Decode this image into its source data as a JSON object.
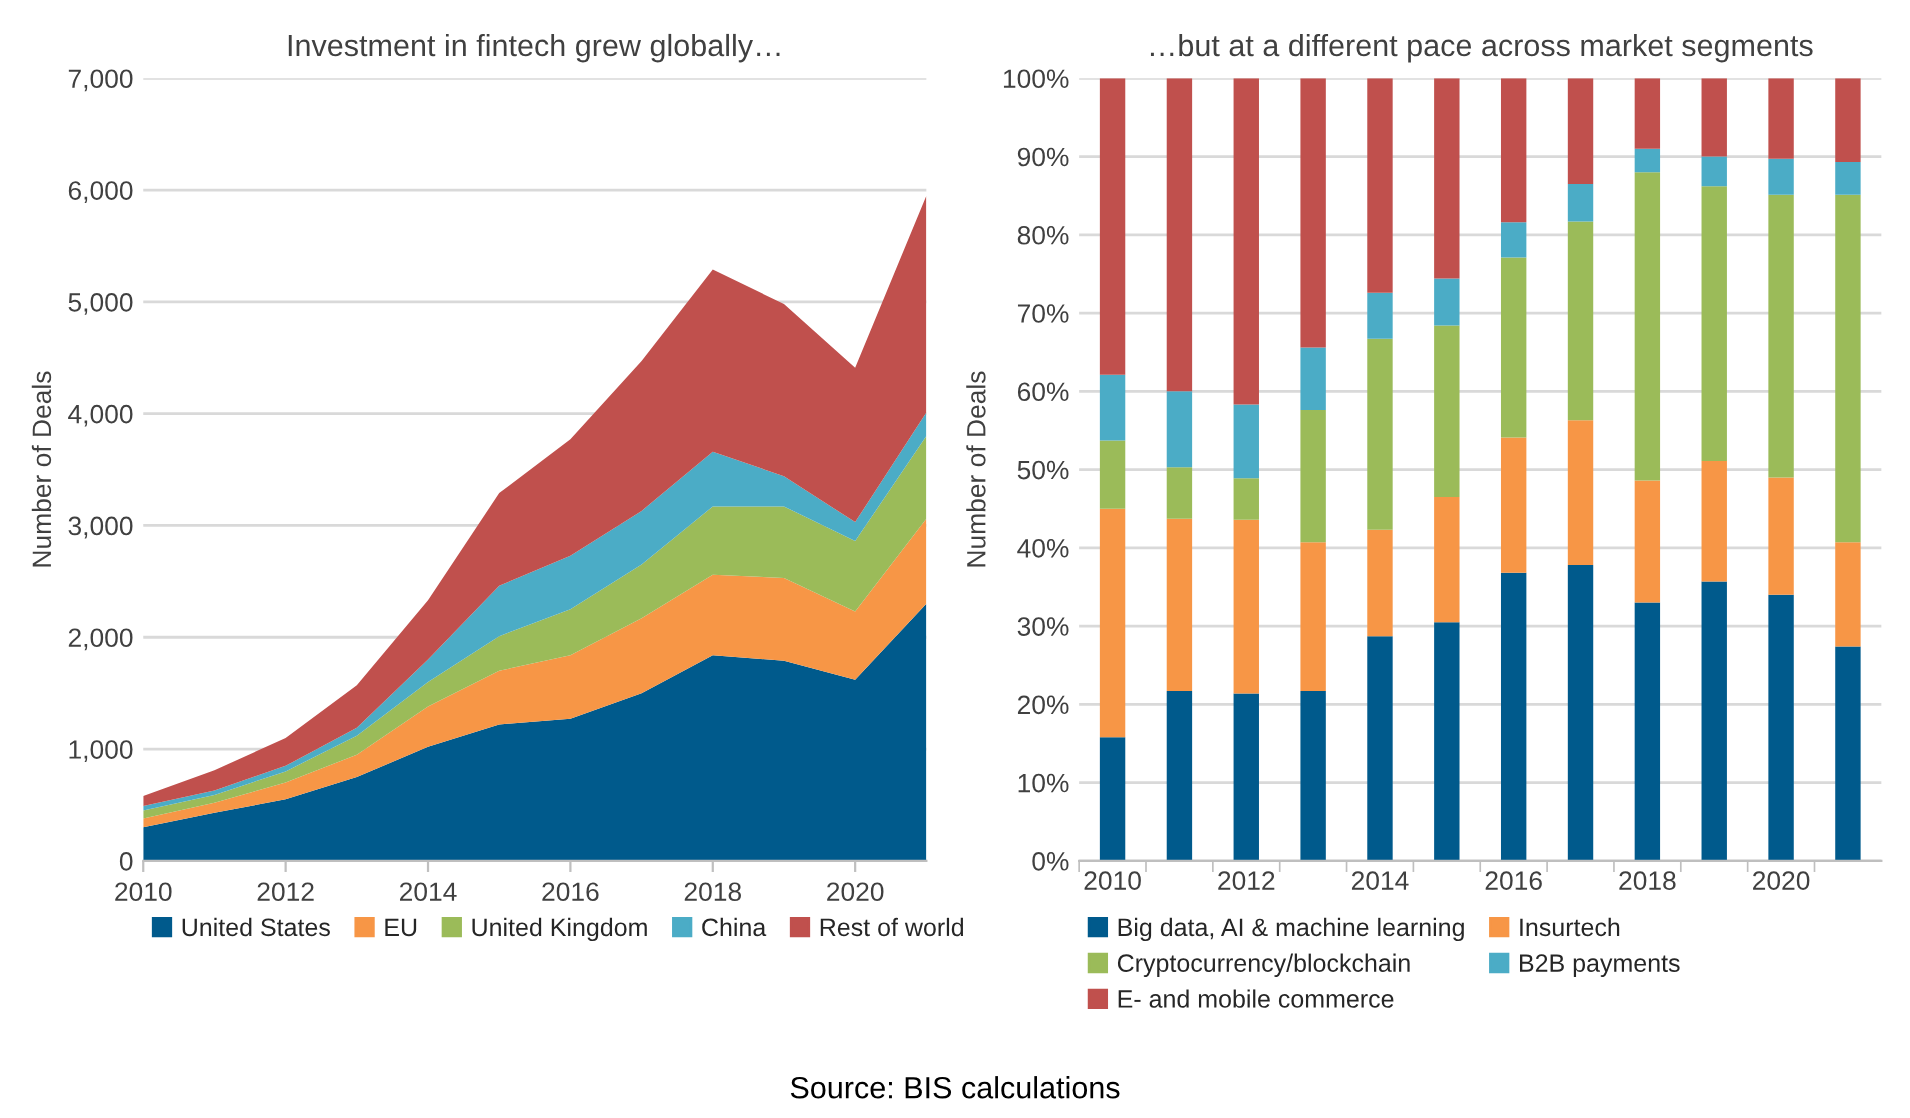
{
  "chart_data": [
    {
      "type": "area",
      "stacked": true,
      "title": "Investment in fintech grew globally…",
      "ylabel": "Number of Deals",
      "x": [
        2010,
        2011,
        2012,
        2013,
        2014,
        2015,
        2016,
        2017,
        2018,
        2019,
        2020,
        2021
      ],
      "series": [
        {
          "name": "United States",
          "color": "#005a8c",
          "values": [
            300,
            430,
            550,
            750,
            1020,
            1220,
            1270,
            1500,
            1840,
            1790,
            1620,
            2300
          ]
        },
        {
          "name": "EU",
          "color": "#f79646",
          "values": [
            80,
            90,
            150,
            200,
            360,
            480,
            570,
            670,
            720,
            740,
            610,
            760
          ]
        },
        {
          "name": "United Kingdom",
          "color": "#9bbb59",
          "values": [
            70,
            70,
            100,
            170,
            220,
            310,
            410,
            480,
            610,
            640,
            630,
            740
          ]
        },
        {
          "name": "China",
          "color": "#4bacc6",
          "values": [
            40,
            40,
            50,
            70,
            200,
            450,
            480,
            480,
            490,
            270,
            170,
            210
          ]
        },
        {
          "name": "Rest of world",
          "color": "#c0504d",
          "values": [
            90,
            180,
            250,
            380,
            530,
            830,
            1040,
            1340,
            1630,
            1540,
            1380,
            1940
          ]
        }
      ],
      "xlim": [
        2010,
        2021
      ],
      "xticks": [
        2010,
        2012,
        2014,
        2016,
        2018,
        2020
      ],
      "ylim": [
        0,
        7000
      ],
      "yticks": [
        {
          "value": 0,
          "label": "0"
        },
        {
          "value": 1000,
          "label": "1,000"
        },
        {
          "value": 2000,
          "label": "2,000"
        },
        {
          "value": 3000,
          "label": "3,000"
        },
        {
          "value": 4000,
          "label": "4,000"
        },
        {
          "value": 5000,
          "label": "5,000"
        },
        {
          "value": 6000,
          "label": "6,000"
        },
        {
          "value": 7000,
          "label": "7,000"
        }
      ],
      "grid": "y",
      "legend": "bottom"
    },
    {
      "type": "bar",
      "stacked": true,
      "title": "…but at a different pace across market segments",
      "ylabel": "Number of Deals",
      "categories": [
        "2010",
        null,
        "2012",
        null,
        "2014",
        null,
        "2016",
        null,
        "2018",
        null,
        "2020",
        null
      ],
      "series": [
        {
          "name": "Big data, AI & machine learning",
          "color": "#005a8c",
          "values": [
            15.8,
            21.7,
            21.4,
            21.7,
            28.7,
            30.5,
            36.8,
            37.8,
            33.0,
            35.7,
            34.0,
            27.4
          ]
        },
        {
          "name": "Insurtech",
          "color": "#f79646",
          "values": [
            29.2,
            22.0,
            22.2,
            19.0,
            13.6,
            16.0,
            17.3,
            18.5,
            15.6,
            15.4,
            15.0,
            13.3
          ]
        },
        {
          "name": "Cryptocurrency/blockchain",
          "color": "#9bbb59",
          "values": [
            8.7,
            6.6,
            5.3,
            16.9,
            24.4,
            21.9,
            23.0,
            25.4,
            39.4,
            35.1,
            36.1,
            44.4
          ]
        },
        {
          "name": "B2B payments",
          "color": "#4bacc6",
          "values": [
            8.4,
            9.7,
            9.4,
            8.0,
            5.9,
            6.0,
            4.5,
            4.8,
            3.0,
            3.8,
            4.6,
            4.2
          ]
        },
        {
          "name": "E- and mobile commerce",
          "color": "#c0504d",
          "values": [
            37.9,
            40.0,
            41.7,
            34.4,
            27.4,
            25.6,
            18.4,
            13.5,
            9.0,
            10.0,
            10.3,
            10.7
          ]
        }
      ],
      "ylim": [
        0,
        100
      ],
      "yticks": [
        {
          "value": 0,
          "label": "0%"
        },
        {
          "value": 10,
          "label": "10%"
        },
        {
          "value": 20,
          "label": "20%"
        },
        {
          "value": 30,
          "label": "30%"
        },
        {
          "value": 40,
          "label": "40%"
        },
        {
          "value": 50,
          "label": "50%"
        },
        {
          "value": 60,
          "label": "60%"
        },
        {
          "value": 70,
          "label": "70%"
        },
        {
          "value": 80,
          "label": "80%"
        },
        {
          "value": 90,
          "label": "90%"
        },
        {
          "value": 100,
          "label": "100%"
        }
      ],
      "grid": "y",
      "legend": "bottom",
      "annotations": [
        "Source: BIS calculations"
      ]
    }
  ]
}
